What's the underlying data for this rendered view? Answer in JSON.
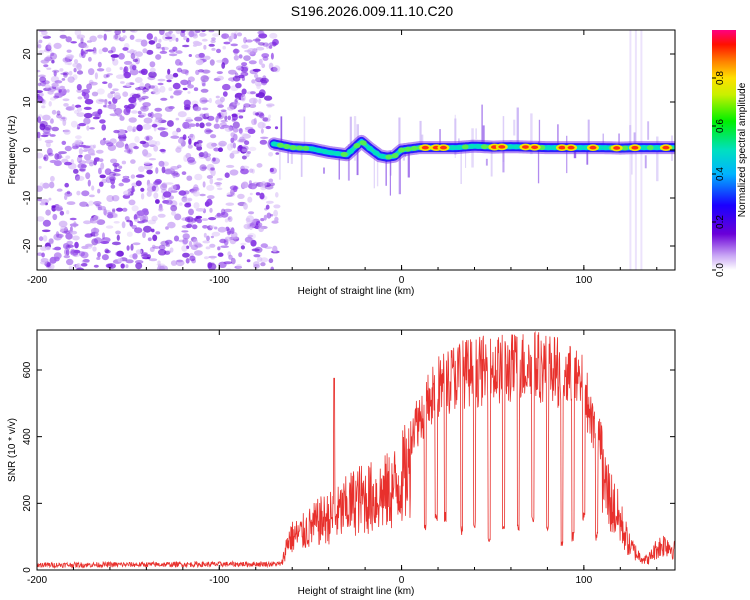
{
  "title": "S196.2026.009.11.10.C20",
  "chart_data": [
    {
      "type": "heatmap",
      "name": "spectrogram",
      "xlabel": "Height of straight line (km)",
      "ylabel": "Frequency (Hz)",
      "xlim": [
        -200,
        150
      ],
      "ylim": [
        -25,
        25
      ],
      "xticks": [
        -200,
        -100,
        0,
        100
      ],
      "yticks": [
        20,
        10,
        0,
        -10,
        -20
      ],
      "noise_region_x": [
        -200,
        -70
      ],
      "signal_start_x": -70,
      "signal_track": {
        "x": [
          -73,
          -60,
          -50,
          -40,
          -30,
          -22,
          -18,
          -12,
          -8,
          -4,
          0,
          10,
          20,
          30,
          40,
          50,
          60,
          70,
          80,
          90,
          100,
          110,
          120,
          130,
          140,
          150
        ],
        "y": [
          1.5,
          0.5,
          0.3,
          -0.5,
          -1,
          1.8,
          0.5,
          -1.2,
          -1.5,
          -1.3,
          0,
          0.5,
          0.5,
          0.5,
          0.8,
          0.6,
          0.7,
          0.6,
          0.5,
          0.5,
          0.5,
          0.5,
          0.4,
          0.5,
          0.5,
          0.5
        ]
      },
      "hotspots_x": [
        13,
        19,
        23,
        51,
        55,
        68,
        73,
        88,
        93,
        105,
        118,
        128,
        145
      ],
      "colorbar": {
        "label": "Normalized spectral amplitude",
        "ticks": [
          0.0,
          0.2,
          0.4,
          0.6,
          0.8
        ],
        "range": [
          0,
          1
        ]
      }
    },
    {
      "type": "line",
      "name": "snr",
      "xlabel": "Height of straight line (km)",
      "ylabel": "SNR (10 * v/v)",
      "xlim": [
        -200,
        150
      ],
      "ylim": [
        0,
        720
      ],
      "xticks": [
        -200,
        -100,
        0,
        100
      ],
      "yticks": [
        0,
        200,
        400,
        600
      ],
      "color": "#e8302c",
      "envelope": {
        "x": [
          -200,
          -66,
          -62,
          -55,
          -45,
          -35,
          -25,
          -15,
          -5,
          5,
          10,
          15,
          20,
          30,
          40,
          50,
          60,
          70,
          80,
          90,
          100,
          105,
          110,
          115,
          120,
          125,
          130,
          135,
          140,
          145,
          150
        ],
        "y": [
          15,
          18,
          130,
          150,
          200,
          230,
          290,
          300,
          330,
          430,
          470,
          520,
          560,
          600,
          610,
          615,
          620,
          630,
          620,
          600,
          560,
          450,
          380,
          280,
          200,
          100,
          60,
          40,
          90,
          110,
          80
        ]
      },
      "spike": {
        "x": -37,
        "y": 575
      },
      "dips": {
        "x": [
          13,
          19,
          24,
          33,
          40,
          48,
          56,
          64,
          72,
          80,
          88,
          94,
          100,
          107
        ],
        "y": [
          130,
          160,
          160,
          120,
          140,
          100,
          130,
          130,
          150,
          130,
          80,
          100,
          160,
          100
        ]
      }
    }
  ]
}
